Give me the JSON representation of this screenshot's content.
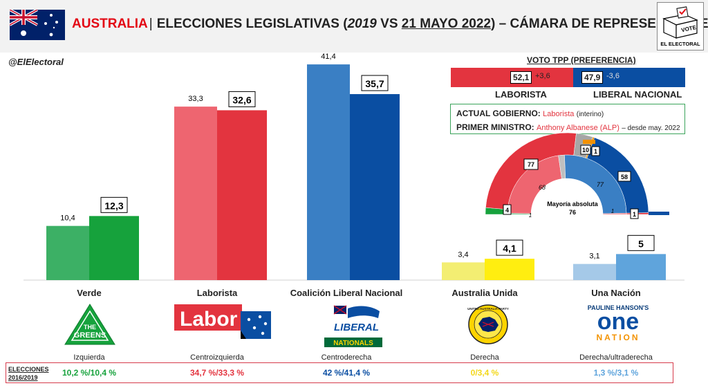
{
  "header": {
    "country": "AUSTRALIA",
    "separator": "|",
    "title_prefix": "ELECCIONES LEGISLATIVAS (",
    "year_prev": "2019",
    "vs": " VS ",
    "date": "21 MAYO 2022",
    "title_suffix": ") – CÁMARA DE REPRESENTANTES",
    "vote_box_label": "VOTE",
    "brand": "EL ELECTORAL"
  },
  "handle": "@ElElectoral",
  "colors": {
    "verde_prev": "#3cb065",
    "verde_now": "#16a23c",
    "labor_prev": "#ee6570",
    "labor_now": "#e3343f",
    "lib_prev": "#3a7fc4",
    "lib_now": "#0a4ea2",
    "uap_prev": "#f3ee72",
    "uap_now": "#ffee10",
    "one_prev": "#a5c9e8",
    "one_now": "#5fa4dc"
  },
  "chart_data": {
    "type": "bar",
    "categories": [
      "Verde",
      "Laborista",
      "Coalición Liberal Nacional",
      "Australia Unida",
      "Una Nación"
    ],
    "series": [
      {
        "values": [
          10.4,
          33.3,
          41.4,
          3.4,
          3.1
        ]
      },
      {
        "values": [
          12.3,
          32.6,
          35.7,
          4.1,
          5
        ]
      }
    ],
    "value_labels_prev": [
      "10,4",
      "33,3",
      "41,4",
      "3,4",
      "3,1"
    ],
    "value_labels_now": [
      "12,3",
      "32,6",
      "35,7",
      "4,1",
      "5"
    ],
    "ylim": [
      0,
      45
    ]
  },
  "ideologies": [
    "Izquierda",
    "Centroizquierda",
    "Centroderecha",
    "Derecha",
    "Derecha/ultraderecha"
  ],
  "logos": {
    "greens_1": "THE",
    "greens_2": "GREENS",
    "labor": "Labor",
    "liberal": "LIBERAL",
    "nationals": "NATIONALS",
    "uap_ring": "UNITED AUSTRALIA PARTY",
    "one_top": "PAULINE HANSON'S",
    "one_mid": "one",
    "one_bot": "NATION"
  },
  "previous": {
    "label_1": "ELECCIONES",
    "label_2": "2016/2019",
    "values": [
      "10,2 %/10,4 %",
      "34,7 %/33,3 %",
      "42 %/41,4 %",
      "0/3,4 %",
      "1,3 %/3,1 %"
    ]
  },
  "tpp": {
    "title": "VOTO TPP (PREFERENCIA)",
    "left_value": "52,1",
    "left_delta": "+3,6",
    "right_value": "47,9",
    "right_delta": "-3,6",
    "left_label": "LABORISTA",
    "right_label": "LIBERAL NACIONAL",
    "left_share": 52.1
  },
  "government": {
    "gov_key": "ACTUAL GOBIERNO:",
    "gov_party": "Laborista",
    "gov_note": "(interino)",
    "pm_key": "PRIMER MINISTRO:",
    "pm_name": "Anthony Albanese (ALP)",
    "pm_note": "– desde may. 2022"
  },
  "hemicycle": {
    "outer": [
      {
        "seats": 4,
        "color": "#16a23c"
      },
      {
        "seats": 77,
        "color": "#e3343f"
      },
      {
        "seats": 10,
        "color": "#a6a6a6"
      },
      {
        "seats": 1,
        "color": "#f39200"
      },
      {
        "seats": 58,
        "color": "#0a4ea2"
      },
      {
        "seats": 1,
        "color": "#e3343f"
      }
    ],
    "inner": [
      {
        "seats": 1,
        "color": "#3cb065"
      },
      {
        "seats": 68,
        "color": "#ee6570"
      },
      {
        "seats": 5,
        "color": "#bfbfbf"
      },
      {
        "seats": 77,
        "color": "#3a7fc4"
      },
      {
        "seats": 1,
        "color": "#ee6570"
      }
    ],
    "label_green_outer": "4",
    "label_labor_outer": "77",
    "label_other_outer": "10",
    "label_kat_outer": "1",
    "label_lib_outer": "58",
    "label_one_outer": "1",
    "label_green_inner": "1",
    "label_labor_inner": "68",
    "label_lib_inner": "77",
    "label_one_inner": "1",
    "majority_label": "Mayoría absoluta",
    "majority_value": "76"
  }
}
